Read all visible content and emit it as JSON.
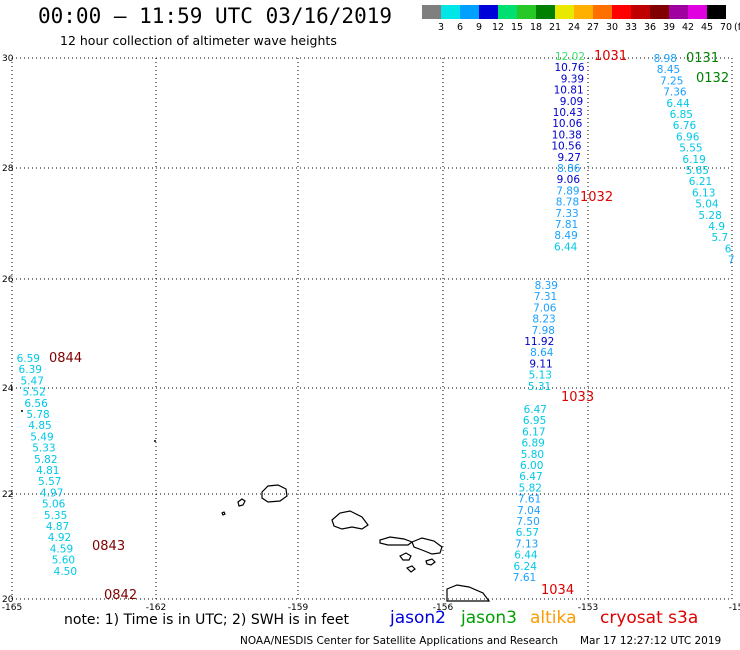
{
  "header": {
    "title": "00:00 – 11:59 UTC 03/16/2019",
    "subtitle": "12 hour collection of altimeter wave heights"
  },
  "legend": {
    "unit": "(ft)",
    "bins": [
      {
        "label": "3",
        "color": "#7f7f7f"
      },
      {
        "label": "6",
        "color": "#00e5e5"
      },
      {
        "label": "9",
        "color": "#00a0ff"
      },
      {
        "label": "12",
        "color": "#0000d8"
      },
      {
        "label": "15",
        "color": "#00e070"
      },
      {
        "label": "18",
        "color": "#28c828"
      },
      {
        "label": "21",
        "color": "#008000"
      },
      {
        "label": "24",
        "color": "#e8e800"
      },
      {
        "label": "27",
        "color": "#ffb000"
      },
      {
        "label": "30",
        "color": "#ff7000"
      },
      {
        "label": "33",
        "color": "#ff0000"
      },
      {
        "label": "36",
        "color": "#c00000"
      },
      {
        "label": "39",
        "color": "#800000"
      },
      {
        "label": "42",
        "color": "#a000a0"
      },
      {
        "label": "45",
        "color": "#e000e0"
      },
      {
        "label": "70",
        "color": "#000000"
      }
    ]
  },
  "map": {
    "lon_ticks": [
      "-165",
      "-162",
      "-159",
      "-156",
      "-153",
      "-15"
    ],
    "lat_ticks": [
      "30",
      "28",
      "26",
      "24",
      "22",
      "20"
    ],
    "lon_range": [
      -165,
      -150
    ],
    "lat_range": [
      20,
      30
    ],
    "tracks": [
      {
        "id": "1031",
        "label_color": "#dd0000",
        "points": [
          {
            "v": "12.02",
            "c": "#40e070"
          },
          {
            "v": "10.76",
            "c": "#0000cc"
          },
          {
            "v": "9.39",
            "c": "#0000cc"
          },
          {
            "v": "10.81",
            "c": "#0000cc"
          },
          {
            "v": "9.09",
            "c": "#0000cc"
          },
          {
            "v": "10.43",
            "c": "#0000cc"
          },
          {
            "v": "10.06",
            "c": "#0000cc"
          },
          {
            "v": "10.38",
            "c": "#0000cc"
          },
          {
            "v": "10.56",
            "c": "#0000cc"
          },
          {
            "v": "9.27",
            "c": "#0000cc"
          },
          {
            "v": "8.86",
            "c": "#1aa0ff"
          },
          {
            "v": "9.06",
            "c": "#0000cc"
          },
          {
            "v": "7.89",
            "c": "#1aa0ff"
          },
          {
            "v": "8.78",
            "c": "#1aa0ff"
          },
          {
            "v": "7.33",
            "c": "#1aa0ff"
          },
          {
            "v": "7.81",
            "c": "#1aa0ff"
          },
          {
            "v": "8.49",
            "c": "#1aa0ff"
          },
          {
            "v": "6.44",
            "c": "#00c8e6"
          }
        ]
      },
      {
        "id": "1032",
        "label_color": "#dd0000",
        "points": [
          {
            "v": "8.39",
            "c": "#1aa0ff"
          },
          {
            "v": "7.31",
            "c": "#1aa0ff"
          },
          {
            "v": "7.06",
            "c": "#1aa0ff"
          },
          {
            "v": "8.23",
            "c": "#1aa0ff"
          },
          {
            "v": "7.98",
            "c": "#1aa0ff"
          },
          {
            "v": "11.92",
            "c": "#0000cc"
          },
          {
            "v": "8.64",
            "c": "#1aa0ff"
          },
          {
            "v": "9.11",
            "c": "#0000cc"
          },
          {
            "v": "5.13",
            "c": "#00c8e6"
          },
          {
            "v": "5.31",
            "c": "#00c8e6"
          }
        ]
      },
      {
        "id": "1033",
        "label_color": "#dd0000",
        "points": [
          {
            "v": "6.47",
            "c": "#00c8e6"
          },
          {
            "v": "6.95",
            "c": "#00c8e6"
          },
          {
            "v": "6.17",
            "c": "#00c8e6"
          },
          {
            "v": "6.89",
            "c": "#00c8e6"
          },
          {
            "v": "5.80",
            "c": "#00c8e6"
          },
          {
            "v": "6.00",
            "c": "#00c8e6"
          },
          {
            "v": "6.47",
            "c": "#00c8e6"
          },
          {
            "v": "5.82",
            "c": "#00c8e6"
          },
          {
            "v": "7.61",
            "c": "#1aa0ff"
          },
          {
            "v": "7.04",
            "c": "#1aa0ff"
          },
          {
            "v": "7.50",
            "c": "#1aa0ff"
          },
          {
            "v": "6.57",
            "c": "#00c8e6"
          },
          {
            "v": "7.13",
            "c": "#1aa0ff"
          },
          {
            "v": "6.44",
            "c": "#00c8e6"
          },
          {
            "v": "6.24",
            "c": "#00c8e6"
          },
          {
            "v": "7.61",
            "c": "#1aa0ff"
          }
        ]
      },
      {
        "id": "1034",
        "label_color": "#dd0000",
        "points": []
      },
      {
        "id": "0131",
        "label_color": "#008000",
        "points": [
          {
            "v": "8.98",
            "c": "#1aa0ff"
          },
          {
            "v": "8.45",
            "c": "#1aa0ff"
          },
          {
            "v": "7.25",
            "c": "#1aa0ff"
          },
          {
            "v": "7.36",
            "c": "#1aa0ff"
          },
          {
            "v": "6.44",
            "c": "#00c8e6"
          },
          {
            "v": "6.85",
            "c": "#00c8e6"
          },
          {
            "v": "6.76",
            "c": "#00c8e6"
          },
          {
            "v": "6.96",
            "c": "#00c8e6"
          },
          {
            "v": "5.55",
            "c": "#00c8e6"
          },
          {
            "v": "6.19",
            "c": "#00c8e6"
          },
          {
            "v": "5.65",
            "c": "#00c8e6"
          },
          {
            "v": "6.21",
            "c": "#00c8e6"
          },
          {
            "v": "6.13",
            "c": "#00c8e6"
          },
          {
            "v": "5.04",
            "c": "#00c8e6"
          },
          {
            "v": "5.28",
            "c": "#00c8e6"
          },
          {
            "v": "4.9",
            "c": "#00c8e6"
          },
          {
            "v": "5.7",
            "c": "#00c8e6"
          },
          {
            "v": "6",
            "c": "#00c8e6"
          },
          {
            "v": "7",
            "c": "#1aa0ff"
          }
        ]
      },
      {
        "id": "0132",
        "label_color": "#008000",
        "points": []
      },
      {
        "id": "0844",
        "label_color": "#800000",
        "points": [
          {
            "v": "6.59",
            "c": "#00c8e6"
          },
          {
            "v": "6.39",
            "c": "#00c8e6"
          },
          {
            "v": "5.47",
            "c": "#00c8e6"
          },
          {
            "v": "5.52",
            "c": "#00c8e6"
          },
          {
            "v": "6.56",
            "c": "#00c8e6"
          },
          {
            "v": "5.78",
            "c": "#00c8e6"
          },
          {
            "v": "4.85",
            "c": "#00c8e6"
          },
          {
            "v": "5.49",
            "c": "#00c8e6"
          },
          {
            "v": "5.33",
            "c": "#00c8e6"
          },
          {
            "v": "5.82",
            "c": "#00c8e6"
          },
          {
            "v": "4.81",
            "c": "#00c8e6"
          },
          {
            "v": "5.57",
            "c": "#00c8e6"
          },
          {
            "v": "4.97",
            "c": "#00c8e6"
          },
          {
            "v": "5.06",
            "c": "#00c8e6"
          },
          {
            "v": "5.35",
            "c": "#00c8e6"
          },
          {
            "v": "4.87",
            "c": "#00c8e6"
          },
          {
            "v": "4.92",
            "c": "#00c8e6"
          },
          {
            "v": "4.59",
            "c": "#00c8e6"
          },
          {
            "v": "5.60",
            "c": "#00c8e6"
          },
          {
            "v": "4.50",
            "c": "#00c8e6"
          }
        ]
      },
      {
        "id": "0843",
        "label_color": "#800000",
        "points": []
      },
      {
        "id": "0842",
        "label_color": "#800000",
        "points": []
      }
    ]
  },
  "footer": {
    "note": "note: 1) Time is in UTC; 2) SWH is in feet",
    "missions": [
      {
        "name": "jason2",
        "color": "#0000dd"
      },
      {
        "name": "jason3",
        "color": "#00a000"
      },
      {
        "name": "altika",
        "color": "#ff9900"
      },
      {
        "name": "cryosat s3a",
        "color": "#dd0000"
      }
    ],
    "credit": "NOAA/NESDIS Center for Satellite Applications and Research",
    "timestamp": "Mar 17 12:27:12 UTC 2019"
  }
}
